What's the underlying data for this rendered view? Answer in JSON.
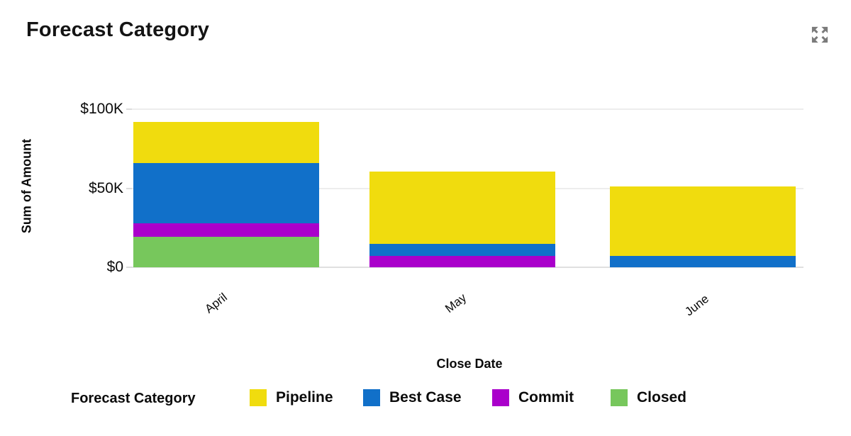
{
  "header": {
    "title": "Forecast Category",
    "expand_icon": "expand-icon",
    "expand_icon_color": "#7b7b7b"
  },
  "chart_data": {
    "type": "bar",
    "stacked": true,
    "title": "Forecast Category",
    "xlabel": "Close Date",
    "ylabel": "Sum of Amount",
    "categories": [
      "April",
      "May",
      "June"
    ],
    "series": [
      {
        "name": "Pipeline",
        "color": "#F0DC0E",
        "values": [
          26000,
          45500,
          44000
        ]
      },
      {
        "name": "Best Case",
        "color": "#1170C9",
        "values": [
          38000,
          8000,
          7000
        ]
      },
      {
        "name": "Commit",
        "color": "#AA00CB",
        "values": [
          8500,
          7000,
          0
        ]
      },
      {
        "name": "Closed",
        "color": "#77C75C",
        "values": [
          19500,
          0,
          0
        ]
      }
    ],
    "ylim": [
      0,
      100000
    ],
    "yticks": [
      {
        "label": "$100K",
        "value": 100000
      },
      {
        "label": "$50K",
        "value": 50000
      },
      {
        "label": "$0",
        "value": 0
      }
    ],
    "grid": "horizontal",
    "legend_title": "Forecast Category",
    "legend_position": "bottom"
  }
}
